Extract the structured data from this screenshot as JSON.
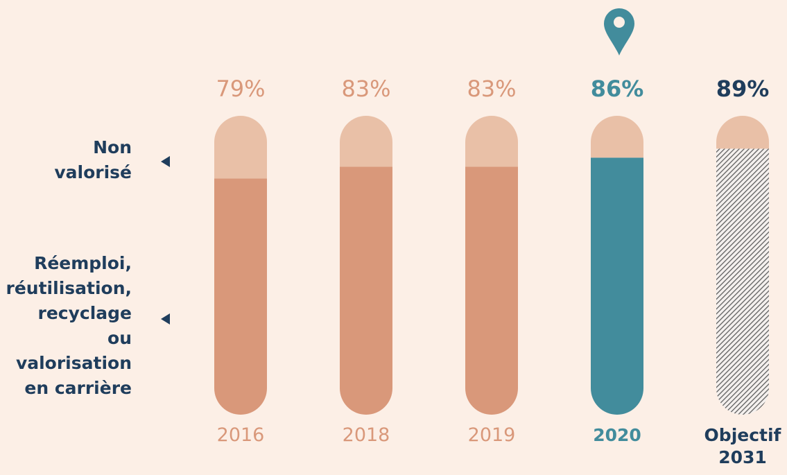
{
  "chart_data": {
    "type": "bar",
    "stacked": true,
    "categories": [
      "2016",
      "2018",
      "2019",
      "2020",
      "Objectif\n2031"
    ],
    "series": [
      {
        "name": "Réemploi,\nréutilisation,\nrecyclage\nou\nvalorisation\nen carrière",
        "color": "#d9987a",
        "colors": [
          "#d9987a",
          "#d9987a",
          "#d9987a",
          "#428c9c",
          "#5a5a5a"
        ],
        "hatched": [
          false,
          false,
          false,
          false,
          true
        ],
        "values": [
          79,
          83,
          83,
          86,
          89
        ],
        "value_labels": [
          "79%",
          "83%",
          "83%",
          "86%",
          "89%"
        ]
      },
      {
        "name": "Non\nvalorisé",
        "color": "#e9c0a7",
        "values": [
          21,
          17,
          17,
          14,
          11
        ]
      }
    ],
    "label_colors": [
      "#d9987a",
      "#d9987a",
      "#d9987a",
      "#428c9c",
      "#1f3d5c"
    ],
    "label_bold": [
      false,
      false,
      false,
      true,
      true
    ],
    "ylim": [
      0,
      100
    ]
  }
}
